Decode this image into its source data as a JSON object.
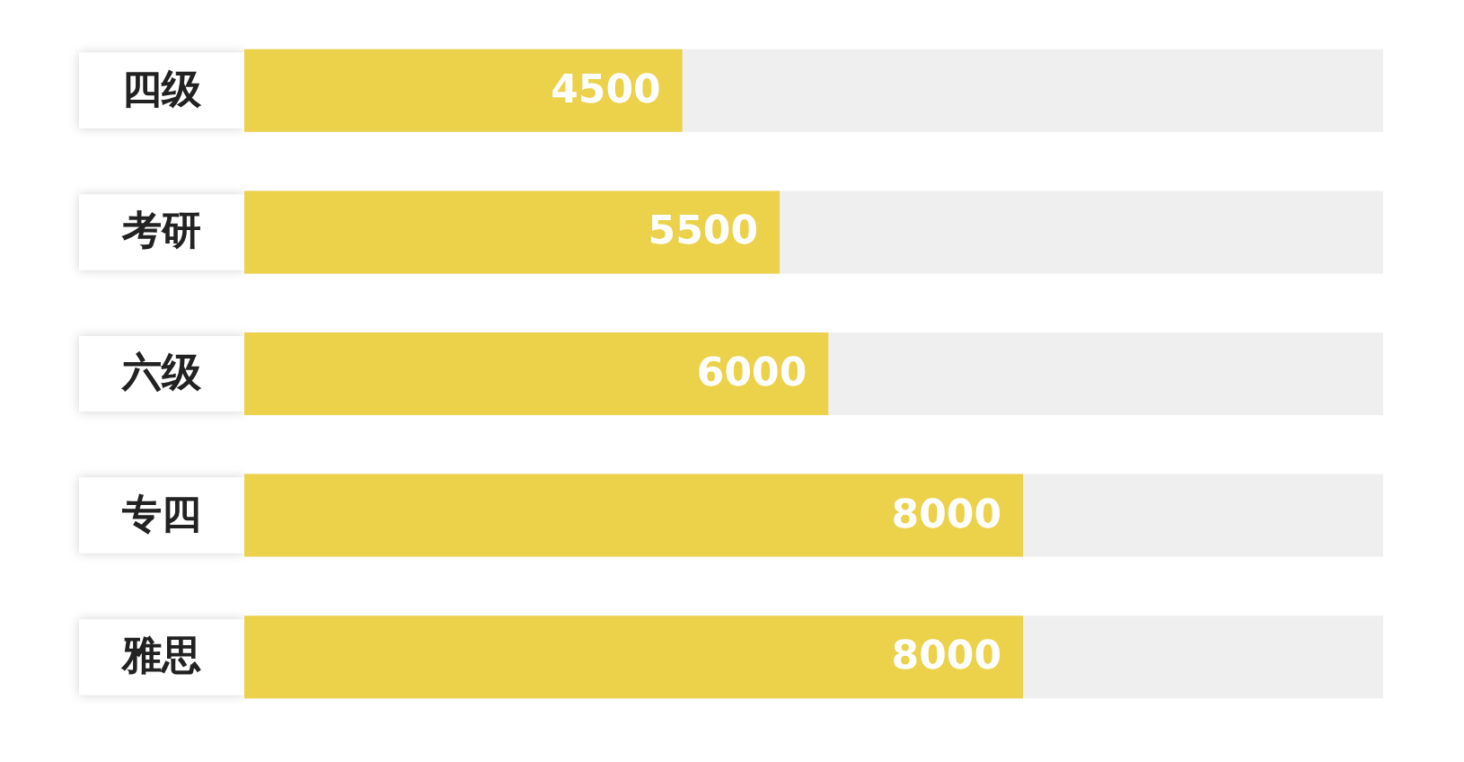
{
  "chart_data": {
    "type": "bar",
    "orientation": "horizontal",
    "categories": [
      "四级",
      "考研",
      "六级",
      "专四",
      "雅思"
    ],
    "values": [
      4500,
      5500,
      6000,
      8000,
      8000
    ],
    "color": "#ecd14a",
    "data_labels": true,
    "xlim": [
      0,
      11700
    ]
  }
}
